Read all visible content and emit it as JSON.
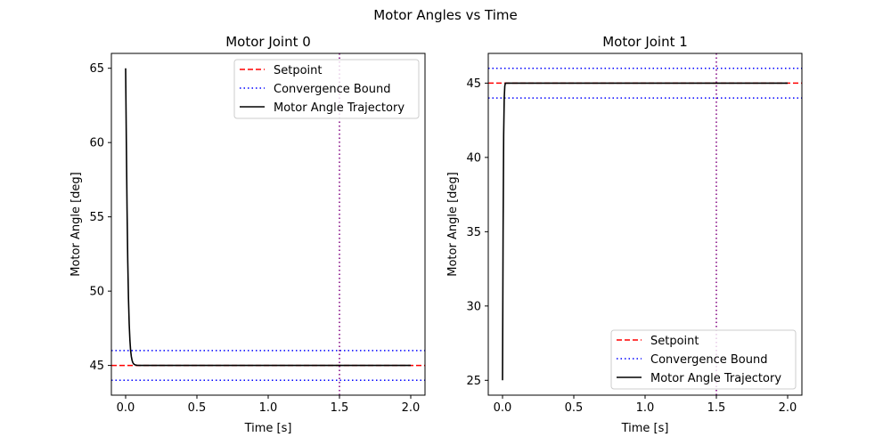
{
  "title": "Motor Angles vs Time",
  "colors": {
    "setpoint": "#ff0000",
    "bound": "#0000ff",
    "trajectory": "#000000",
    "marker": "#800080"
  },
  "chart_data": [
    {
      "type": "line",
      "title": "Motor Joint 0",
      "xlabel": "Time [s]",
      "ylabel": "Motor Angle [deg]",
      "xlim": [
        -0.1,
        2.1
      ],
      "ylim": [
        43.0,
        66.0
      ],
      "xticks": [
        0.0,
        0.5,
        1.0,
        1.5,
        2.0
      ],
      "xtick_labels": [
        "0.0",
        "0.5",
        "1.0",
        "1.5",
        "2.0"
      ],
      "yticks": [
        45,
        50,
        55,
        60,
        65
      ],
      "ytick_labels": [
        "45",
        "50",
        "55",
        "60",
        "65"
      ],
      "grid": false,
      "legend_position": "upper right",
      "legend": [
        "Setpoint",
        "Convergence Bound",
        "Motor Angle Trajectory"
      ],
      "setpoint": 45,
      "convergence_bounds": [
        44,
        46
      ],
      "vertical_line_x": 1.5,
      "trajectory": {
        "x": [
          0.0,
          0.005,
          0.01,
          0.015,
          0.02,
          0.025,
          0.03,
          0.035,
          0.04,
          0.045,
          0.05,
          0.055,
          0.06,
          0.07,
          0.08,
          0.1,
          0.15,
          0.2,
          0.5,
          1.0,
          1.5,
          2.0
        ],
        "y": [
          65.0,
          60.0,
          55.5,
          52.0,
          49.5,
          47.8,
          46.7,
          46.0,
          45.6,
          45.35,
          45.2,
          45.12,
          45.07,
          45.03,
          45.01,
          45.0,
          45.0,
          45.0,
          45.0,
          45.0,
          45.0,
          45.0
        ]
      }
    },
    {
      "type": "line",
      "title": "Motor Joint 1",
      "xlabel": "Time [s]",
      "ylabel": "Motor Angle [deg]",
      "xlim": [
        -0.1,
        2.1
      ],
      "ylim": [
        24.0,
        47.0
      ],
      "xticks": [
        0.0,
        0.5,
        1.0,
        1.5,
        2.0
      ],
      "xtick_labels": [
        "0.0",
        "0.5",
        "1.0",
        "1.5",
        "2.0"
      ],
      "yticks": [
        25,
        30,
        35,
        40,
        45
      ],
      "ytick_labels": [
        "25",
        "30",
        "35",
        "40",
        "45"
      ],
      "grid": false,
      "legend_position": "lower right",
      "legend": [
        "Setpoint",
        "Convergence Bound",
        "Motor Angle Trajectory"
      ],
      "setpoint": 45,
      "convergence_bounds": [
        44,
        46
      ],
      "vertical_line_x": 1.5,
      "trajectory": {
        "x": [
          0.0,
          0.004,
          0.008,
          0.012,
          0.016,
          0.02,
          0.025,
          0.03,
          0.04,
          0.06,
          0.1,
          0.2,
          0.5,
          1.0,
          1.5,
          2.0
        ],
        "y": [
          25.0,
          35.0,
          41.5,
          44.0,
          44.8,
          45.0,
          45.0,
          45.0,
          45.0,
          45.0,
          45.0,
          45.0,
          45.0,
          45.0,
          45.0,
          45.0
        ]
      }
    }
  ]
}
